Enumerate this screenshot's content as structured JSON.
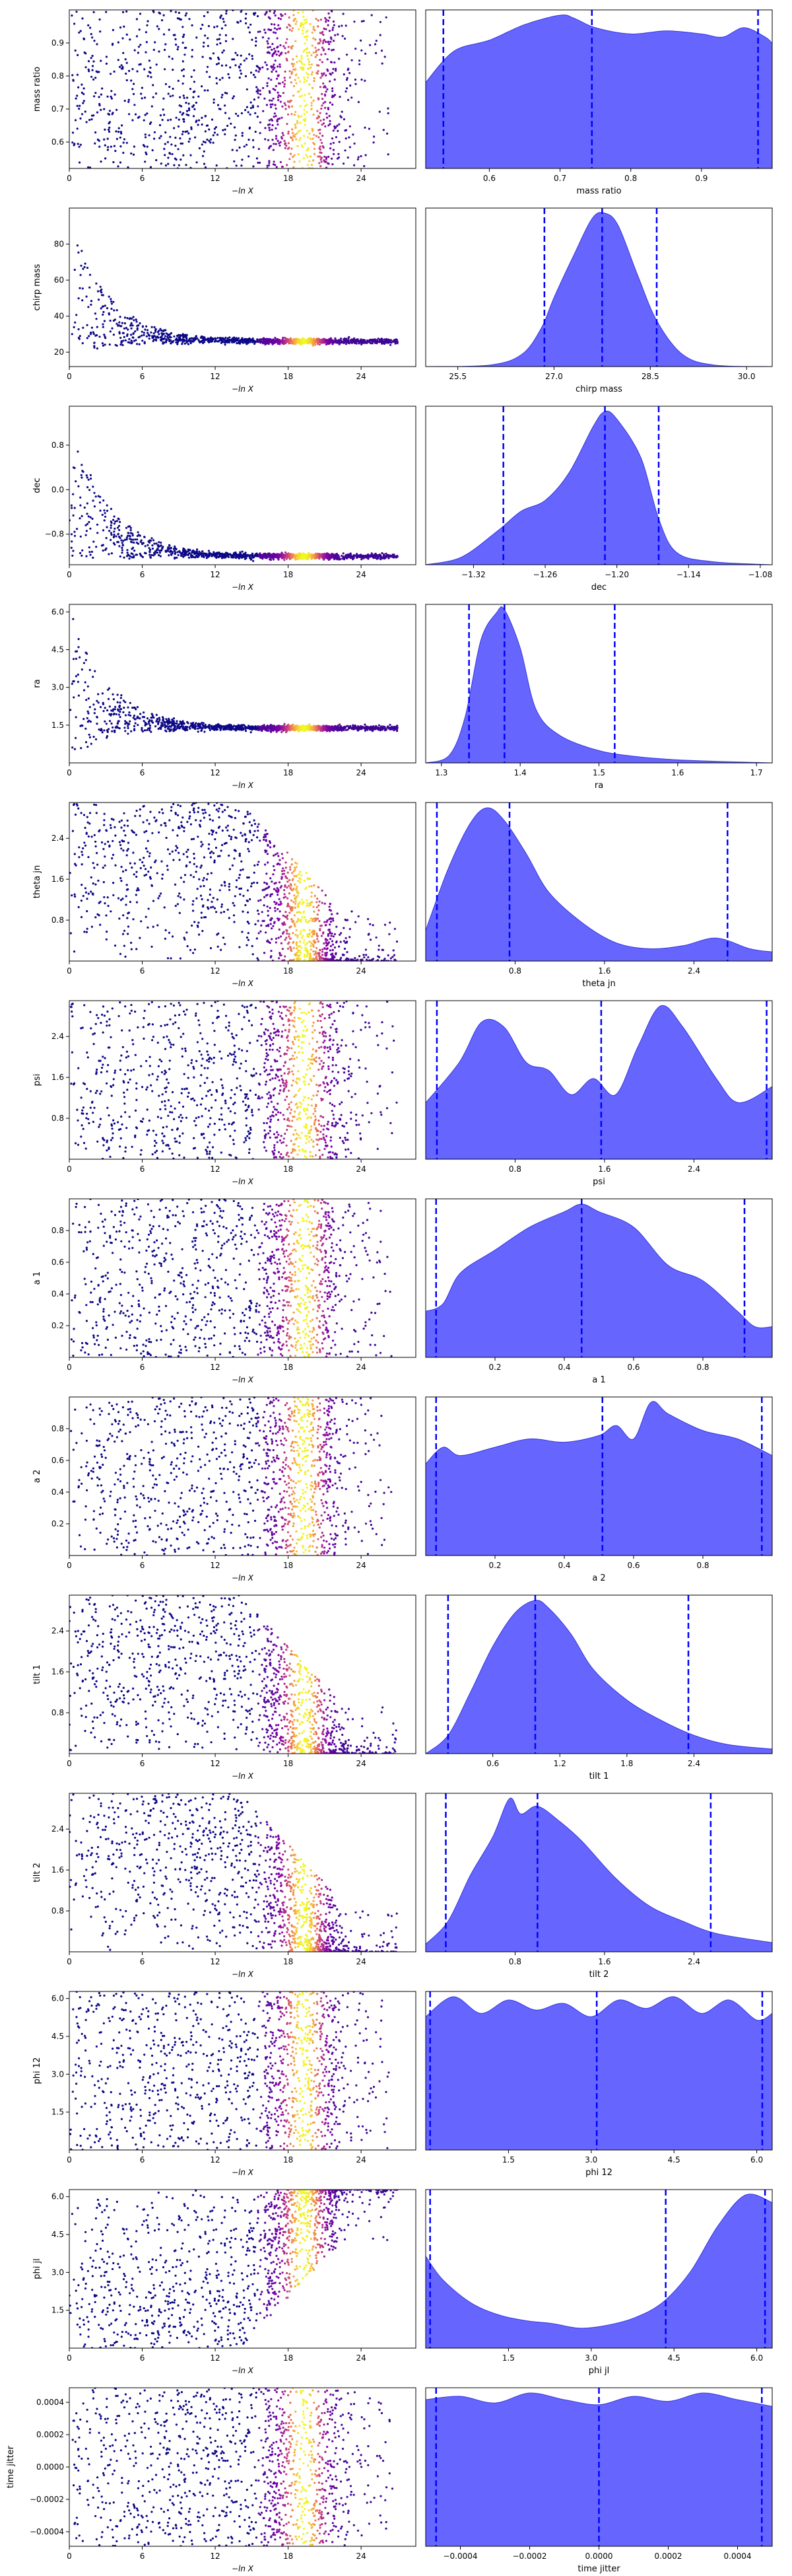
{
  "figure": {
    "x_axis_label": "−ln X",
    "colors": {
      "scatter_low": "#0d0887",
      "scatter_mid": "#cc4778",
      "scatter_high": "#f0f921",
      "kde_fill": "#6666ff",
      "kde_edge": "#3333dd",
      "quantile_line": "#0000ff"
    }
  },
  "chart_data": [
    {
      "type": "scatter+area",
      "parameter": "mass ratio",
      "scatter": {
        "x_ticks": [
          0,
          6,
          12,
          18,
          24
        ],
        "y_ticks": [
          0.6,
          0.7,
          0.8,
          0.9
        ],
        "ylim": [
          0.52,
          1.0
        ],
        "xlim": [
          0,
          28.5
        ],
        "shape": "uniform",
        "ylabel": "mass ratio"
      },
      "kde": {
        "xlabel": "mass ratio",
        "xlim": [
          0.51,
          1.0
        ],
        "x_ticks": [
          0.6,
          0.7,
          0.8,
          0.9
        ],
        "quantiles": [
          0.535,
          0.745,
          0.98
        ],
        "x": [
          0.51,
          0.55,
          0.6,
          0.65,
          0.7,
          0.72,
          0.75,
          0.8,
          0.85,
          0.9,
          0.93,
          0.96,
          0.99,
          1.0
        ],
        "density": [
          0.55,
          0.75,
          0.82,
          0.92,
          0.98,
          0.96,
          0.9,
          0.86,
          0.88,
          0.86,
          0.84,
          0.9,
          0.84,
          0.8
        ]
      }
    },
    {
      "type": "scatter+area",
      "parameter": "chirp mass",
      "scatter": {
        "x_ticks": [
          0,
          6,
          12,
          18,
          24
        ],
        "y_ticks": [
          20,
          40,
          60,
          80
        ],
        "ylim": [
          12,
          100
        ],
        "xlim": [
          0,
          28.5
        ],
        "shape": "converge",
        "converge_to": 26,
        "spread0": [
          16,
          95
        ],
        "ylabel": "chirp mass"
      },
      "kde": {
        "xlabel": "chirp mass",
        "xlim": [
          25.0,
          30.4
        ],
        "x_ticks": [
          25.5,
          27.0,
          28.5,
          30.0
        ],
        "quantiles": [
          26.85,
          27.75,
          28.6
        ],
        "x": [
          25.0,
          26.0,
          26.5,
          26.8,
          27.0,
          27.3,
          27.6,
          27.8,
          28.0,
          28.3,
          28.6,
          29.0,
          29.5,
          30.4
        ],
        "density": [
          0.0,
          0.01,
          0.08,
          0.25,
          0.45,
          0.72,
          0.97,
          1.0,
          0.92,
          0.6,
          0.3,
          0.08,
          0.01,
          0.0
        ]
      }
    },
    {
      "type": "scatter+area",
      "parameter": "dec",
      "scatter": {
        "x_ticks": [
          0,
          6,
          12,
          18,
          24
        ],
        "y_ticks": [
          -0.8,
          0.0,
          0.8
        ],
        "ylim": [
          -1.35,
          1.5
        ],
        "xlim": [
          0,
          28.5
        ],
        "shape": "converge",
        "converge_to": -1.2,
        "spread0": [
          -1.3,
          1.4
        ],
        "ylabel": "dec"
      },
      "kde": {
        "xlabel": "dec",
        "xlim": [
          -1.36,
          -1.07
        ],
        "x_ticks": [
          -1.32,
          -1.26,
          -1.2,
          -1.14,
          -1.08
        ],
        "quantiles": [
          -1.295,
          -1.21,
          -1.165
        ],
        "x": [
          -1.36,
          -1.33,
          -1.3,
          -1.28,
          -1.26,
          -1.24,
          -1.22,
          -1.21,
          -1.2,
          -1.18,
          -1.165,
          -1.15,
          -1.12,
          -1.07
        ],
        "density": [
          0.0,
          0.05,
          0.22,
          0.35,
          0.42,
          0.6,
          0.9,
          1.0,
          0.95,
          0.7,
          0.3,
          0.08,
          0.02,
          0.0
        ]
      }
    },
    {
      "type": "scatter+area",
      "parameter": "ra",
      "scatter": {
        "x_ticks": [
          0,
          6,
          12,
          18,
          24
        ],
        "y_ticks": [
          1.5,
          3.0,
          4.5,
          6.0
        ],
        "ylim": [
          0,
          6.3
        ],
        "xlim": [
          0,
          28.5
        ],
        "shape": "converge",
        "converge_to": 1.38,
        "spread0": [
          0.3,
          6.2
        ],
        "ylabel": "ra"
      },
      "kde": {
        "xlabel": "ra",
        "xlim": [
          1.28,
          1.72
        ],
        "x_ticks": [
          1.3,
          1.4,
          1.5,
          1.6,
          1.7
        ],
        "quantiles": [
          1.335,
          1.38,
          1.52
        ],
        "x": [
          1.28,
          1.31,
          1.33,
          1.35,
          1.37,
          1.38,
          1.4,
          1.42,
          1.45,
          1.5,
          1.55,
          1.6,
          1.65,
          1.72
        ],
        "density": [
          0.0,
          0.05,
          0.3,
          0.8,
          0.98,
          1.0,
          0.75,
          0.35,
          0.18,
          0.08,
          0.04,
          0.02,
          0.01,
          0.0
        ]
      }
    },
    {
      "type": "scatter+area",
      "parameter": "theta jn",
      "scatter": {
        "x_ticks": [
          0,
          6,
          12,
          18,
          24
        ],
        "y_ticks": [
          0.8,
          1.6,
          2.4
        ],
        "ylim": [
          0,
          3.1
        ],
        "xlim": [
          0,
          28.5
        ],
        "shape": "bottom",
        "ylabel": "theta jn"
      },
      "kde": {
        "xlabel": "theta jn",
        "xlim": [
          0,
          3.1
        ],
        "x_ticks": [
          0.8,
          1.6,
          2.4
        ],
        "quantiles": [
          0.1,
          0.75,
          2.7
        ],
        "x": [
          0.0,
          0.2,
          0.4,
          0.55,
          0.7,
          0.9,
          1.1,
          1.4,
          1.7,
          2.0,
          2.3,
          2.6,
          2.9,
          3.1
        ],
        "density": [
          0.2,
          0.6,
          0.9,
          1.0,
          0.92,
          0.7,
          0.45,
          0.25,
          0.12,
          0.08,
          0.1,
          0.15,
          0.08,
          0.06
        ]
      }
    },
    {
      "type": "scatter+area",
      "parameter": "psi",
      "scatter": {
        "x_ticks": [
          0,
          6,
          12,
          18,
          24
        ],
        "y_ticks": [
          0.8,
          1.6,
          2.4
        ],
        "ylim": [
          0,
          3.1
        ],
        "xlim": [
          0,
          28.5
        ],
        "shape": "uniform",
        "ylabel": "psi"
      },
      "kde": {
        "xlabel": "psi",
        "xlim": [
          0,
          3.1
        ],
        "x_ticks": [
          0.8,
          1.6,
          2.4
        ],
        "quantiles": [
          0.1,
          1.57,
          3.05
        ],
        "x": [
          0.0,
          0.3,
          0.5,
          0.7,
          0.9,
          1.1,
          1.3,
          1.5,
          1.7,
          1.9,
          2.1,
          2.3,
          2.6,
          2.8,
          3.1
        ],
        "density": [
          0.35,
          0.6,
          0.85,
          0.82,
          0.6,
          0.55,
          0.4,
          0.5,
          0.4,
          0.7,
          0.95,
          0.82,
          0.5,
          0.35,
          0.45
        ]
      }
    },
    {
      "type": "scatter+area",
      "parameter": "a 1",
      "scatter": {
        "x_ticks": [
          0,
          6,
          12,
          18,
          24
        ],
        "y_ticks": [
          0.2,
          0.4,
          0.6,
          0.8
        ],
        "ylim": [
          0,
          1.0
        ],
        "xlim": [
          0,
          28.5
        ],
        "shape": "uniform",
        "ylabel": "a 1"
      },
      "kde": {
        "xlabel": "a 1",
        "xlim": [
          0,
          1.0
        ],
        "x_ticks": [
          0.2,
          0.4,
          0.6,
          0.8
        ],
        "quantiles": [
          0.03,
          0.45,
          0.92
        ],
        "x": [
          0.0,
          0.05,
          0.1,
          0.2,
          0.3,
          0.4,
          0.45,
          0.5,
          0.6,
          0.7,
          0.8,
          0.9,
          0.95,
          1.0
        ],
        "density": [
          0.3,
          0.35,
          0.55,
          0.7,
          0.85,
          0.95,
          1.0,
          0.95,
          0.85,
          0.6,
          0.5,
          0.3,
          0.2,
          0.2
        ]
      }
    },
    {
      "type": "scatter+area",
      "parameter": "a 2",
      "scatter": {
        "x_ticks": [
          0,
          6,
          12,
          18,
          24
        ],
        "y_ticks": [
          0.2,
          0.4,
          0.6,
          0.8
        ],
        "ylim": [
          0,
          1.0
        ],
        "xlim": [
          0,
          28.5
        ],
        "shape": "uniform",
        "ylabel": "a 2"
      },
      "kde": {
        "xlabel": "a 2",
        "xlim": [
          0,
          1.0
        ],
        "x_ticks": [
          0.2,
          0.4,
          0.6,
          0.8
        ],
        "quantiles": [
          0.03,
          0.51,
          0.97
        ],
        "x": [
          0.0,
          0.05,
          0.1,
          0.2,
          0.3,
          0.4,
          0.5,
          0.55,
          0.6,
          0.65,
          0.7,
          0.8,
          0.9,
          1.0
        ],
        "density": [
          0.55,
          0.65,
          0.6,
          0.65,
          0.7,
          0.68,
          0.72,
          0.78,
          0.7,
          0.92,
          0.85,
          0.75,
          0.7,
          0.6
        ]
      }
    },
    {
      "type": "scatter+area",
      "parameter": "tilt 1",
      "scatter": {
        "x_ticks": [
          0,
          6,
          12,
          18,
          24
        ],
        "y_ticks": [
          0.8,
          1.6,
          2.4
        ],
        "ylim": [
          0,
          3.1
        ],
        "xlim": [
          0,
          28.5
        ],
        "shape": "bottom",
        "ylabel": "tilt 1"
      },
      "kde": {
        "xlabel": "tilt 1",
        "xlim": [
          0,
          3.1
        ],
        "x_ticks": [
          0.6,
          1.2,
          1.8,
          2.4
        ],
        "quantiles": [
          0.2,
          0.98,
          2.35
        ],
        "x": [
          0.0,
          0.2,
          0.4,
          0.6,
          0.8,
          0.98,
          1.1,
          1.3,
          1.5,
          1.8,
          2.1,
          2.4,
          2.7,
          3.1
        ],
        "density": [
          0.0,
          0.12,
          0.4,
          0.7,
          0.92,
          1.0,
          0.95,
          0.78,
          0.55,
          0.35,
          0.22,
          0.12,
          0.06,
          0.03
        ]
      }
    },
    {
      "type": "scatter+area",
      "parameter": "tilt 2",
      "scatter": {
        "x_ticks": [
          0,
          6,
          12,
          18,
          24
        ],
        "y_ticks": [
          0.8,
          1.6,
          2.4
        ],
        "ylim": [
          0,
          3.1
        ],
        "xlim": [
          0,
          28.5
        ],
        "shape": "bottom",
        "ylabel": "tilt 2"
      },
      "kde": {
        "xlabel": "tilt 2",
        "xlim": [
          0,
          3.1
        ],
        "x_ticks": [
          0.8,
          1.6,
          2.4
        ],
        "quantiles": [
          0.18,
          1.0,
          2.55
        ],
        "x": [
          0.0,
          0.2,
          0.4,
          0.6,
          0.75,
          0.85,
          1.0,
          1.2,
          1.4,
          1.7,
          2.0,
          2.3,
          2.6,
          3.1
        ],
        "density": [
          0.05,
          0.2,
          0.5,
          0.75,
          1.0,
          0.9,
          0.95,
          0.85,
          0.72,
          0.48,
          0.3,
          0.2,
          0.12,
          0.06
        ]
      }
    },
    {
      "type": "scatter+area",
      "parameter": "phi 12",
      "scatter": {
        "x_ticks": [
          0,
          6,
          12,
          18,
          24
        ],
        "y_ticks": [
          1.5,
          3.0,
          4.5,
          6.0
        ],
        "ylim": [
          0,
          6.28
        ],
        "xlim": [
          0,
          28.5
        ],
        "shape": "uniform",
        "ylabel": "phi 12"
      },
      "kde": {
        "xlabel": "phi 12",
        "xlim": [
          0,
          6.28
        ],
        "x_ticks": [
          1.5,
          3.0,
          4.5,
          6.0
        ],
        "quantiles": [
          0.08,
          3.1,
          6.1
        ],
        "x": [
          0.0,
          0.5,
          1.0,
          1.5,
          2.0,
          2.5,
          3.0,
          3.5,
          4.0,
          4.5,
          5.0,
          5.5,
          6.0,
          6.28
        ],
        "density": [
          0.8,
          0.92,
          0.82,
          0.9,
          0.84,
          0.88,
          0.8,
          0.9,
          0.85,
          0.92,
          0.82,
          0.9,
          0.78,
          0.82
        ]
      }
    },
    {
      "type": "scatter+area",
      "parameter": "phi jl",
      "scatter": {
        "x_ticks": [
          0,
          6,
          12,
          18,
          24
        ],
        "y_ticks": [
          1.5,
          3.0,
          4.5,
          6.0
        ],
        "ylim": [
          0,
          6.28
        ],
        "xlim": [
          0,
          28.5
        ],
        "shape": "top",
        "ylabel": "phi jl"
      },
      "kde": {
        "xlabel": "phi jl",
        "xlim": [
          0,
          6.28
        ],
        "x_ticks": [
          1.5,
          3.0,
          4.5,
          6.0
        ],
        "quantiles": [
          0.08,
          4.35,
          6.15
        ],
        "x": [
          0.0,
          0.3,
          0.8,
          1.3,
          1.8,
          2.3,
          2.8,
          3.3,
          3.8,
          4.3,
          4.8,
          5.3,
          5.8,
          6.28
        ],
        "density": [
          0.6,
          0.45,
          0.3,
          0.22,
          0.18,
          0.16,
          0.13,
          0.15,
          0.2,
          0.3,
          0.5,
          0.8,
          1.0,
          0.95
        ]
      }
    },
    {
      "type": "scatter+area",
      "parameter": "time jitter",
      "scatter": {
        "x_ticks": [
          0,
          6,
          12,
          18,
          24
        ],
        "y_ticks": [
          -0.0004,
          -0.0002,
          0.0,
          0.0002,
          0.0004
        ],
        "y_tick_labels": [
          "−0.0004",
          "−0.0002",
          "0.0000",
          "0.0002",
          "0.0004"
        ],
        "ylim": [
          -0.00049,
          0.00049
        ],
        "xlim": [
          0,
          28.5
        ],
        "shape": "uniform",
        "ylabel": "time jitter"
      },
      "kde": {
        "xlabel": "time jitter",
        "xlim": [
          -0.0005,
          0.0005
        ],
        "x_ticks": [
          -0.0004,
          -0.0002,
          0.0,
          0.0002,
          0.0004
        ],
        "x_tick_labels": [
          "−0.0004",
          "−0.0002",
          "0.0000",
          "0.0002",
          "0.0004"
        ],
        "quantiles": [
          -0.00047,
          0.0,
          0.00047
        ],
        "x": [
          -0.0005,
          -0.0004,
          -0.0003,
          -0.0002,
          -0.0001,
          0.0,
          0.0001,
          0.0002,
          0.0003,
          0.0004,
          0.0005
        ],
        "density": [
          0.88,
          0.9,
          0.86,
          0.92,
          0.88,
          0.85,
          0.9,
          0.87,
          0.92,
          0.88,
          0.84
        ]
      }
    }
  ]
}
